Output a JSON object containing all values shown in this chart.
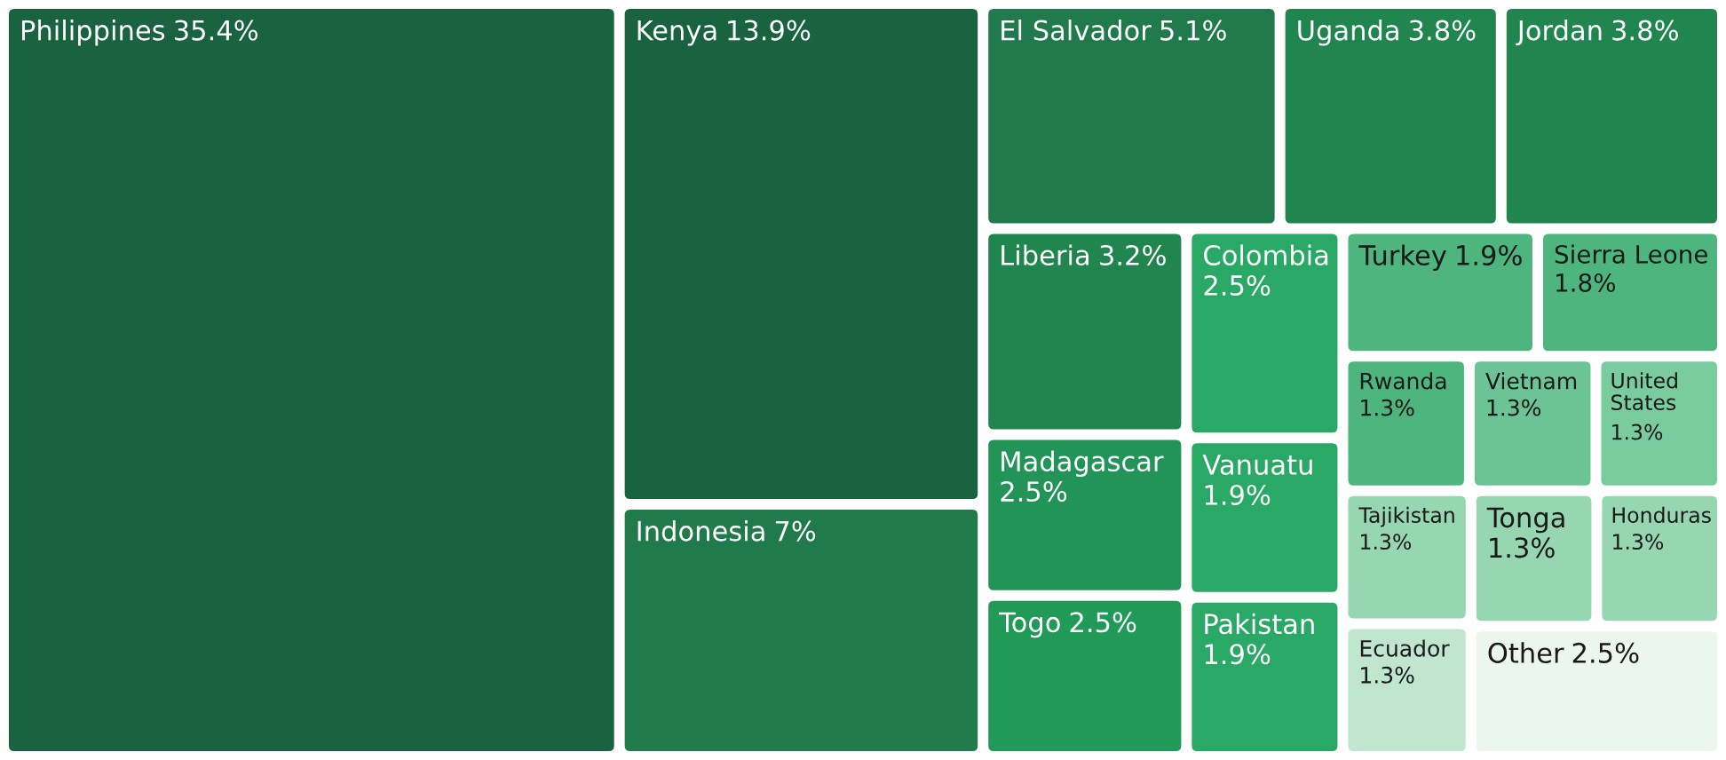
{
  "chart_data": {
    "type": "other",
    "categories": [
      "Philippines",
      "Kenya",
      "Indonesia",
      "El Salvador",
      "Uganda",
      "Jordan",
      "Liberia",
      "Madagascar",
      "Togo",
      "Colombia",
      "Vanuatu",
      "Pakistan",
      "Turkey",
      "Sierra Leone",
      "Rwanda",
      "Vietnam",
      "United States",
      "Tajikistan",
      "Ecuador",
      "Tonga",
      "Honduras",
      "Other"
    ],
    "values": [
      35.4,
      13.9,
      7,
      5.1,
      3.8,
      3.8,
      3.2,
      2.5,
      2.5,
      2.5,
      1.9,
      1.9,
      1.9,
      1.8,
      1.3,
      1.3,
      1.3,
      1.3,
      1.3,
      1.3,
      1.3,
      2.5
    ],
    "value_labels": [
      "35.4%",
      "13.9%",
      "7%",
      "5.1%",
      "3.8%",
      "3.8%",
      "3.2%",
      "2.5%",
      "2.5%",
      "2.5%",
      "1.9%",
      "1.9%",
      "1.9%",
      "1.8%",
      "1.3%",
      "1.3%",
      "1.3%",
      "1.3%",
      "1.3%",
      "1.3%",
      "1.3%",
      "2.5%"
    ],
    "colors": [
      "#1a6340",
      "#1a6340",
      "#217a4b",
      "#217a4b",
      "#21854f",
      "#21854f",
      "#21854f",
      "#239457",
      "#219a58",
      "#2aa866",
      "#2aa866",
      "#2aa866",
      "#4db57d",
      "#4db57d",
      "#4db57d",
      "#6cc395",
      "#7acc9f",
      "#96d6b1",
      "#c0e6cf",
      "#96d6b1",
      "#96d6b1",
      "#eaf6ee"
    ]
  }
}
